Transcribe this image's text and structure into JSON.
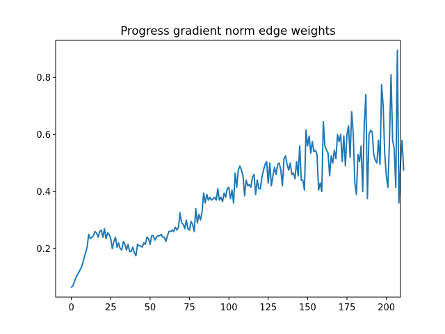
{
  "chart_data": {
    "type": "line",
    "title": "Progress gradient norm edge weights",
    "xlabel": "",
    "ylabel": "",
    "xlim": [
      -10,
      209
    ],
    "ylim": [
      0.03,
      0.93
    ],
    "xticks": [
      0,
      25,
      50,
      75,
      100,
      125,
      150,
      175,
      200
    ],
    "xtick_labels": [
      "0",
      "25",
      "50",
      "75",
      "100",
      "125",
      "150",
      "175",
      "200"
    ],
    "yticks": [
      0.2,
      0.4,
      0.6,
      0.8
    ],
    "ytick_labels": [
      "0.2",
      "0.4",
      "0.6",
      "0.8"
    ],
    "grid": false,
    "color": "#1f77b4",
    "series": [
      {
        "values": [
          0.065,
          0.07,
          0.085,
          0.1,
          0.11,
          0.12,
          0.13,
          0.145,
          0.165,
          0.185,
          0.205,
          0.25,
          0.235,
          0.24,
          0.245,
          0.26,
          0.255,
          0.24,
          0.26,
          0.265,
          0.24,
          0.27,
          0.235,
          0.255,
          0.25,
          0.235,
          0.2,
          0.225,
          0.24,
          0.205,
          0.22,
          0.2,
          0.195,
          0.225,
          0.215,
          0.195,
          0.215,
          0.19,
          0.19,
          0.205,
          0.185,
          0.175,
          0.215,
          0.21,
          0.21,
          0.205,
          0.22,
          0.215,
          0.24,
          0.235,
          0.215,
          0.245,
          0.245,
          0.23,
          0.24,
          0.245,
          0.245,
          0.25,
          0.24,
          0.24,
          0.225,
          0.245,
          0.26,
          0.26,
          0.265,
          0.26,
          0.275,
          0.265,
          0.275,
          0.325,
          0.29,
          0.285,
          0.27,
          0.3,
          0.27,
          0.265,
          0.295,
          0.285,
          0.26,
          0.34,
          0.29,
          0.32,
          0.3,
          0.33,
          0.395,
          0.36,
          0.39,
          0.37,
          0.38,
          0.37,
          0.375,
          0.38,
          0.37,
          0.41,
          0.37,
          0.38,
          0.365,
          0.395,
          0.38,
          0.41,
          0.415,
          0.375,
          0.405,
          0.36,
          0.465,
          0.415,
          0.475,
          0.49,
          0.475,
          0.455,
          0.385,
          0.44,
          0.42,
          0.425,
          0.415,
          0.45,
          0.46,
          0.39,
          0.44,
          0.41,
          0.41,
          0.45,
          0.475,
          0.495,
          0.505,
          0.43,
          0.5,
          0.42,
          0.455,
          0.485,
          0.46,
          0.495,
          0.5,
          0.475,
          0.42,
          0.515,
          0.525,
          0.495,
          0.475,
          0.5,
          0.46,
          0.465,
          0.445,
          0.505,
          0.455,
          0.56,
          0.44,
          0.44,
          0.405,
          0.615,
          0.56,
          0.595,
          0.535,
          0.575,
          0.54,
          0.545,
          0.53,
          0.405,
          0.43,
          0.4,
          0.645,
          0.56,
          0.545,
          0.535,
          0.455,
          0.525,
          0.5,
          0.545,
          0.515,
          0.6,
          0.575,
          0.6,
          0.505,
          0.595,
          0.49,
          0.6,
          0.63,
          0.52,
          0.68,
          0.6,
          0.43,
          0.39,
          0.53,
          0.505,
          0.56,
          0.4,
          0.64,
          0.74,
          0.375,
          0.6,
          0.615,
          0.61,
          0.53,
          0.51,
          0.5,
          0.58,
          0.495,
          0.775,
          0.7,
          0.53,
          0.455,
          0.415,
          0.58,
          0.81,
          0.58,
          0.55,
          0.415,
          0.895,
          0.36,
          0.5,
          0.58,
          0.475
        ]
      }
    ]
  }
}
